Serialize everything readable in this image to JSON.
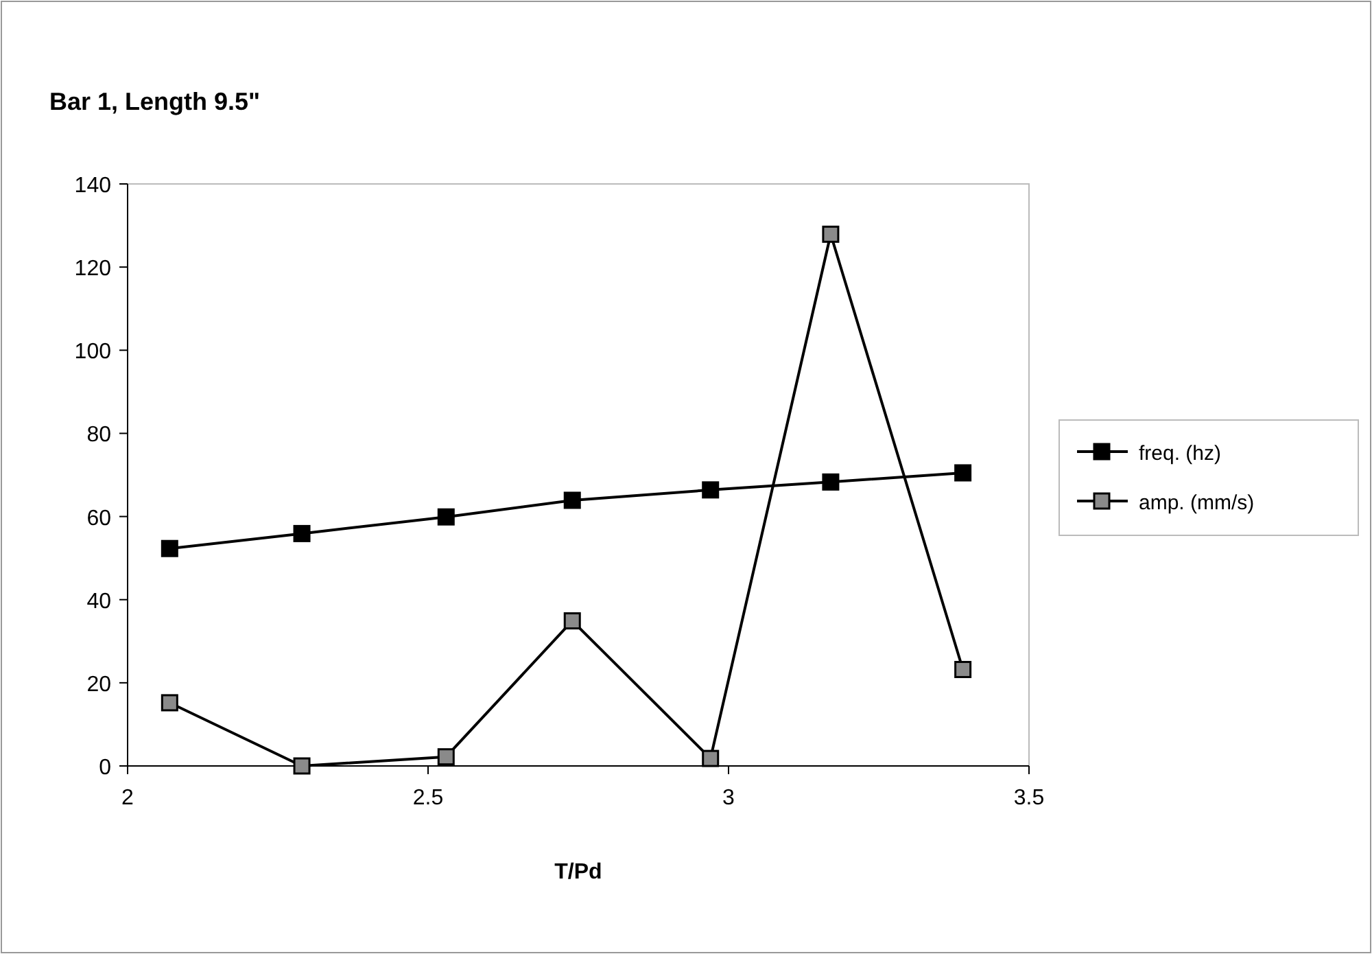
{
  "chart_data": {
    "type": "line",
    "title": "Bar 1, Length 9.5\"",
    "xlabel": "T/Pd",
    "x": [
      2.07,
      2.29,
      2.53,
      2.74,
      2.97,
      3.17,
      3.39
    ],
    "series": [
      {
        "name": "freq. (hz)",
        "color": "#000000",
        "values": [
          52.3,
          55.9,
          59.9,
          63.9,
          66.4,
          68.3,
          70.5
        ]
      },
      {
        "name": "amp. (mm/s)",
        "color": "#8a8a8a",
        "values": [
          15.2,
          0,
          2.2,
          34.9,
          1.8,
          127.9,
          23.2
        ]
      }
    ],
    "xlim": [
      2,
      3.5
    ],
    "xticks": [
      2,
      2.5,
      3,
      3.5
    ],
    "ylim": [
      0,
      140
    ],
    "yticks": [
      0,
      20,
      40,
      60,
      80,
      100,
      120,
      140
    ],
    "grid": false,
    "legend": "right",
    "marker": "square",
    "line_style": "solid"
  }
}
